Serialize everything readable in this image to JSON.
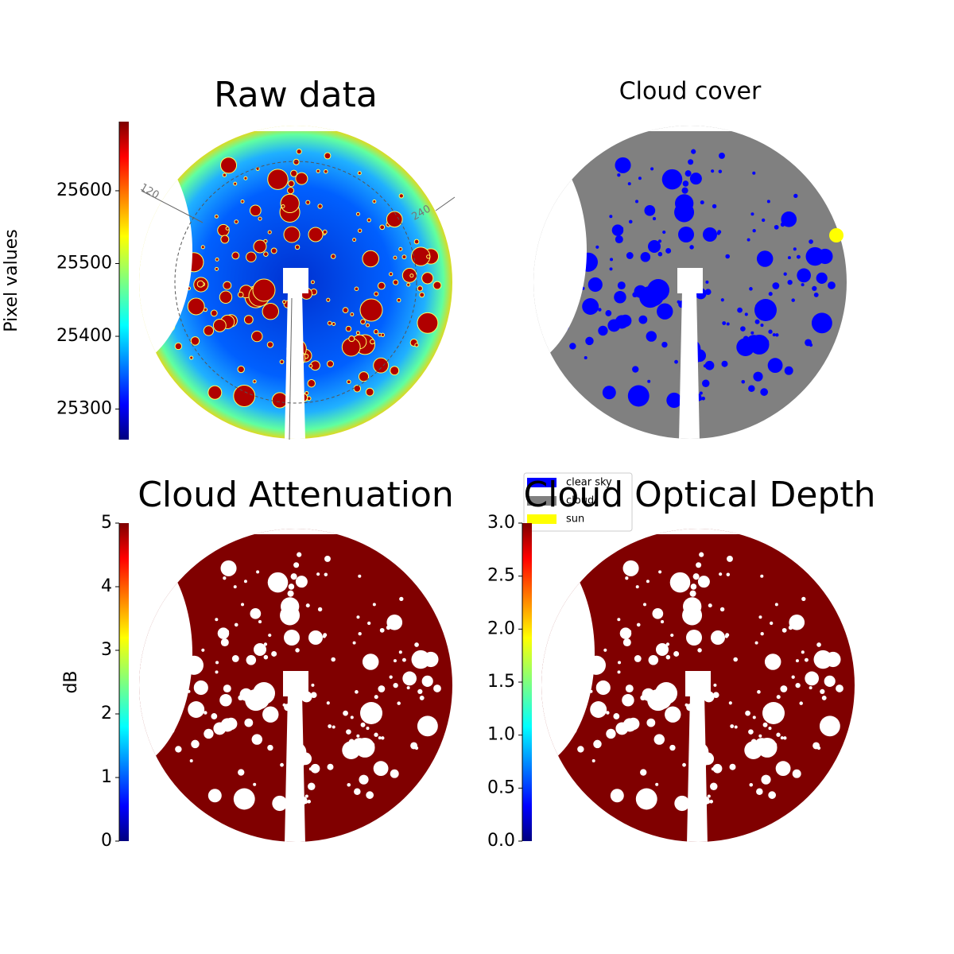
{
  "chart_data": [
    {
      "type": "image",
      "title": "Raw data",
      "colorbar_label": "Pixel values",
      "cmap": "jet",
      "ylim": [
        25258,
        25695
      ],
      "yticks": [
        25300,
        25400,
        25500,
        25600
      ],
      "annotations": [
        "120",
        "240"
      ]
    },
    {
      "type": "image",
      "title": "Cloud cover",
      "legend_entries": [
        {
          "name": "clear sky",
          "color": "#0000ff"
        },
        {
          "name": "cloud",
          "color": "#808080"
        },
        {
          "name": "sun",
          "color": "#ffff00"
        }
      ],
      "legend": "lower left"
    },
    {
      "type": "image",
      "title": "Cloud Attenuation",
      "colorbar_label": "dB",
      "cmap": "jet",
      "ylim": [
        0,
        5
      ],
      "yticks": [
        0,
        1,
        2,
        3,
        4,
        5
      ]
    },
    {
      "type": "image",
      "title": "Cloud Optical Depth",
      "cmap": "jet",
      "ylim": [
        0,
        3
      ],
      "yticks": [
        {
          "value": 0,
          "label": "0.0"
        },
        0.5,
        {
          "value": 1,
          "label": "1.0"
        },
        1.5,
        {
          "value": 2,
          "label": "2.0"
        },
        2.5,
        {
          "value": 3,
          "label": "3.0"
        }
      ]
    }
  ]
}
